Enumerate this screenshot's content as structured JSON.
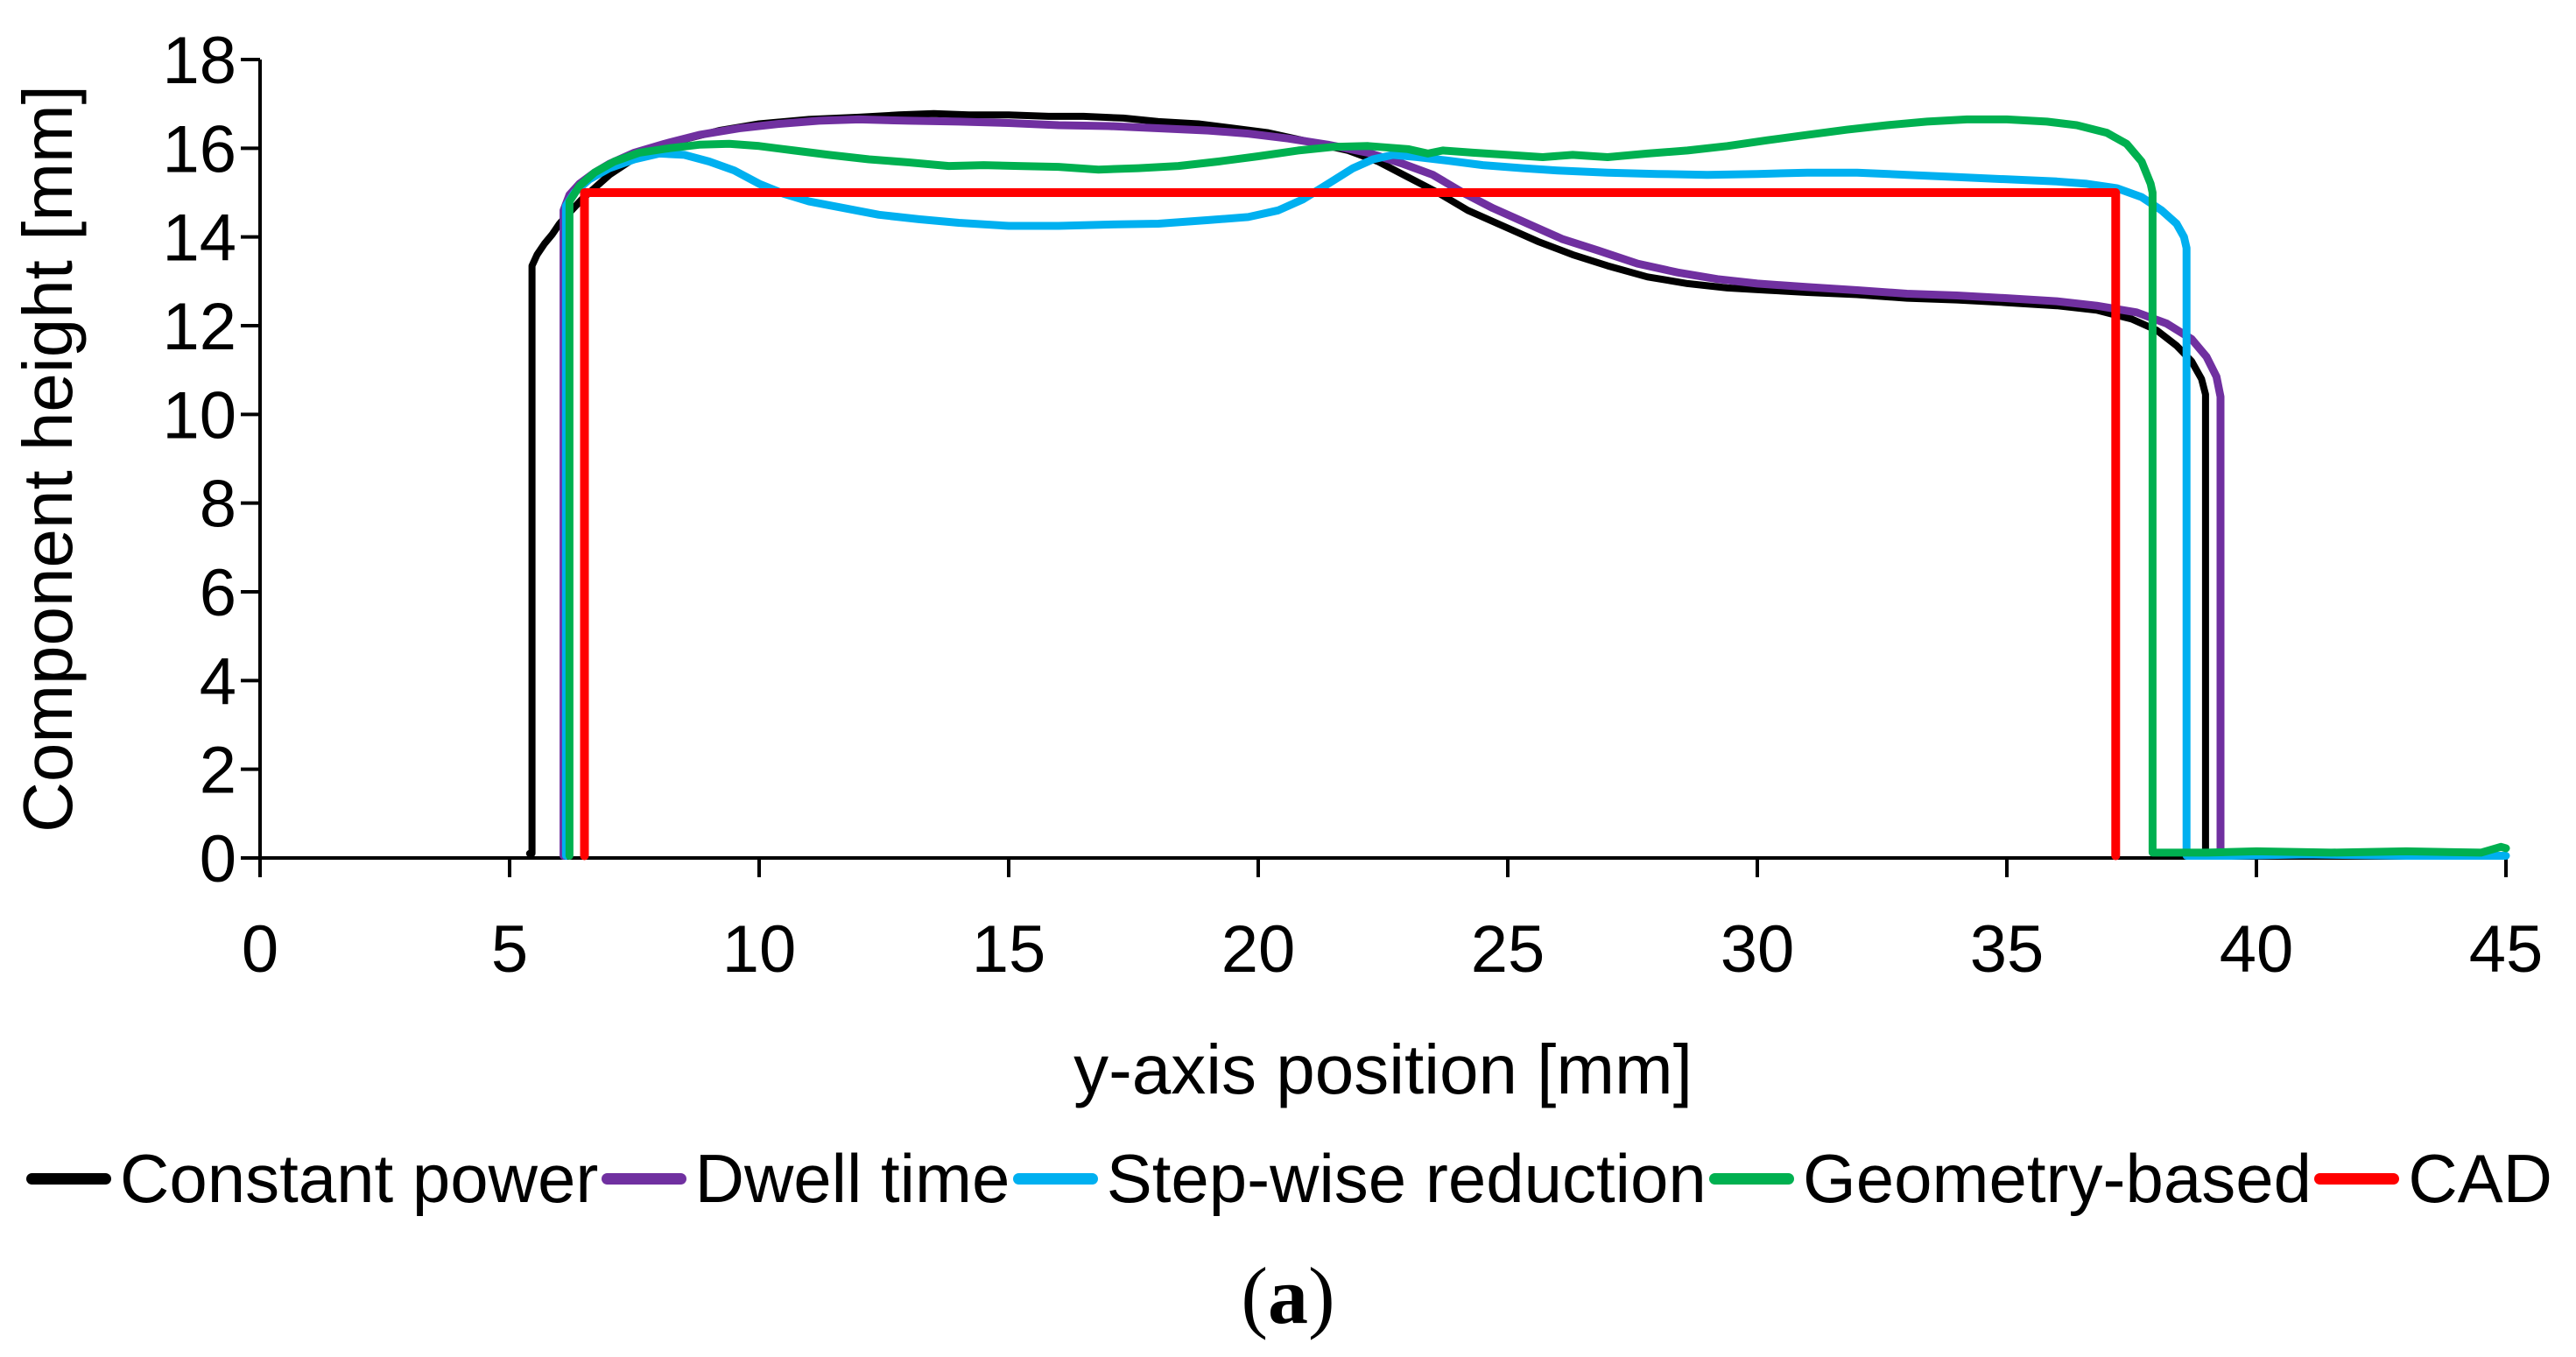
{
  "figure": {
    "caption": {
      "open": "(",
      "label": "a",
      "close": ")"
    }
  },
  "chart_data": {
    "type": "line",
    "title": "",
    "xlabel": "y-axis position [mm]",
    "ylabel": "Component height [mm]",
    "xlim": [
      0,
      45
    ],
    "ylim": [
      0,
      18
    ],
    "xticks": [
      0,
      5,
      10,
      15,
      20,
      25,
      30,
      35,
      40,
      45
    ],
    "yticks": [
      0,
      2,
      4,
      6,
      8,
      10,
      12,
      14,
      16,
      18
    ],
    "grid": false,
    "legend_position": "bottom",
    "axis_color": "#000000",
    "series": [
      {
        "name": "Constant power",
        "color": "#000000",
        "width": 8,
        "points": [
          [
            5.4,
            0.1
          ],
          [
            5.45,
            0.1
          ],
          [
            5.45,
            13.35
          ],
          [
            5.55,
            13.6
          ],
          [
            5.7,
            13.85
          ],
          [
            5.85,
            14.05
          ],
          [
            6.0,
            14.3
          ],
          [
            6.2,
            14.55
          ],
          [
            6.45,
            14.85
          ],
          [
            6.7,
            15.1
          ],
          [
            7.0,
            15.4
          ],
          [
            7.4,
            15.7
          ],
          [
            7.9,
            16.0
          ],
          [
            8.5,
            16.2
          ],
          [
            9.2,
            16.4
          ],
          [
            10,
            16.55
          ],
          [
            11,
            16.65
          ],
          [
            12,
            16.7
          ],
          [
            12.8,
            16.75
          ],
          [
            13.5,
            16.78
          ],
          [
            14.2,
            16.75
          ],
          [
            15,
            16.75
          ],
          [
            15.8,
            16.72
          ],
          [
            16.5,
            16.72
          ],
          [
            17.3,
            16.68
          ],
          [
            18,
            16.6
          ],
          [
            18.8,
            16.55
          ],
          [
            19.5,
            16.45
          ],
          [
            20.2,
            16.35
          ],
          [
            21,
            16.15
          ],
          [
            21.8,
            15.95
          ],
          [
            22.4,
            15.7
          ],
          [
            23,
            15.35
          ],
          [
            23.6,
            15.0
          ],
          [
            24.2,
            14.6
          ],
          [
            24.9,
            14.25
          ],
          [
            25.6,
            13.9
          ],
          [
            26.3,
            13.6
          ],
          [
            27,
            13.35
          ],
          [
            27.8,
            13.1
          ],
          [
            28.6,
            12.95
          ],
          [
            29.4,
            12.85
          ],
          [
            30.2,
            12.8
          ],
          [
            31,
            12.75
          ],
          [
            32,
            12.7
          ],
          [
            33,
            12.62
          ],
          [
            34,
            12.58
          ],
          [
            35,
            12.52
          ],
          [
            36,
            12.45
          ],
          [
            36.8,
            12.35
          ],
          [
            37.5,
            12.15
          ],
          [
            38,
            11.9
          ],
          [
            38.4,
            11.55
          ],
          [
            38.7,
            11.2
          ],
          [
            38.9,
            10.8
          ],
          [
            38.98,
            10.45
          ],
          [
            38.98,
            0.05
          ]
        ]
      },
      {
        "name": "Dwell time",
        "color": "#7030A0",
        "width": 9,
        "points": [
          [
            6.08,
            0.05
          ],
          [
            6.08,
            14.6
          ],
          [
            6.2,
            14.95
          ],
          [
            6.4,
            15.2
          ],
          [
            6.7,
            15.45
          ],
          [
            7.0,
            15.65
          ],
          [
            7.5,
            15.9
          ],
          [
            8.1,
            16.1
          ],
          [
            8.8,
            16.3
          ],
          [
            9.6,
            16.45
          ],
          [
            10.4,
            16.55
          ],
          [
            11.2,
            16.62
          ],
          [
            12,
            16.65
          ],
          [
            13,
            16.62
          ],
          [
            14,
            16.6
          ],
          [
            15,
            16.57
          ],
          [
            16,
            16.52
          ],
          [
            17,
            16.5
          ],
          [
            18,
            16.45
          ],
          [
            19,
            16.4
          ],
          [
            19.8,
            16.33
          ],
          [
            20.6,
            16.22
          ],
          [
            21.4,
            16.08
          ],
          [
            22.2,
            15.9
          ],
          [
            22.9,
            15.65
          ],
          [
            23.5,
            15.4
          ],
          [
            24.1,
            15.0
          ],
          [
            24.7,
            14.65
          ],
          [
            25.4,
            14.3
          ],
          [
            26.1,
            13.95
          ],
          [
            26.8,
            13.7
          ],
          [
            27.6,
            13.4
          ],
          [
            28.4,
            13.2
          ],
          [
            29.2,
            13.05
          ],
          [
            30,
            12.95
          ],
          [
            31,
            12.87
          ],
          [
            32,
            12.8
          ],
          [
            33,
            12.72
          ],
          [
            34,
            12.68
          ],
          [
            35,
            12.62
          ],
          [
            36,
            12.55
          ],
          [
            36.8,
            12.45
          ],
          [
            37.6,
            12.3
          ],
          [
            38.2,
            12.05
          ],
          [
            38.7,
            11.7
          ],
          [
            39.0,
            11.3
          ],
          [
            39.2,
            10.85
          ],
          [
            39.28,
            10.4
          ],
          [
            39.28,
            0.05
          ]
        ]
      },
      {
        "name": "Step-wise reduction",
        "color": "#00B0F0",
        "width": 9,
        "points": [
          [
            6.13,
            0.05
          ],
          [
            6.13,
            14.7
          ],
          [
            6.3,
            15.0
          ],
          [
            6.6,
            15.3
          ],
          [
            7.0,
            15.55
          ],
          [
            7.5,
            15.75
          ],
          [
            8.0,
            15.88
          ],
          [
            8.5,
            15.85
          ],
          [
            9.0,
            15.7
          ],
          [
            9.5,
            15.5
          ],
          [
            10.0,
            15.2
          ],
          [
            10.5,
            14.97
          ],
          [
            11,
            14.8
          ],
          [
            11.7,
            14.65
          ],
          [
            12.4,
            14.5
          ],
          [
            13.2,
            14.4
          ],
          [
            14,
            14.32
          ],
          [
            15,
            14.25
          ],
          [
            16,
            14.25
          ],
          [
            17,
            14.28
          ],
          [
            18,
            14.3
          ],
          [
            19,
            14.38
          ],
          [
            19.8,
            14.45
          ],
          [
            20.4,
            14.6
          ],
          [
            20.9,
            14.85
          ],
          [
            21.4,
            15.2
          ],
          [
            21.9,
            15.55
          ],
          [
            22.3,
            15.75
          ],
          [
            22.7,
            15.85
          ],
          [
            23.2,
            15.8
          ],
          [
            23.8,
            15.72
          ],
          [
            24.5,
            15.62
          ],
          [
            25.3,
            15.55
          ],
          [
            26,
            15.5
          ],
          [
            27,
            15.45
          ],
          [
            28,
            15.42
          ],
          [
            29,
            15.4
          ],
          [
            30,
            15.42
          ],
          [
            31,
            15.45
          ],
          [
            32,
            15.45
          ],
          [
            33,
            15.4
          ],
          [
            34,
            15.35
          ],
          [
            35,
            15.3
          ],
          [
            36,
            15.25
          ],
          [
            36.6,
            15.2
          ],
          [
            37.2,
            15.1
          ],
          [
            37.7,
            14.9
          ],
          [
            38.1,
            14.6
          ],
          [
            38.4,
            14.3
          ],
          [
            38.55,
            14.0
          ],
          [
            38.6,
            13.75
          ],
          [
            38.6,
            0.05
          ],
          [
            39.5,
            0.05
          ],
          [
            41,
            0.08
          ],
          [
            43,
            0.05
          ],
          [
            45,
            0.05
          ]
        ]
      },
      {
        "name": "Geometry-based",
        "color": "#00B050",
        "width": 9,
        "points": [
          [
            6.2,
            0.05
          ],
          [
            6.2,
            14.8
          ],
          [
            6.4,
            15.15
          ],
          [
            6.7,
            15.45
          ],
          [
            7.1,
            15.7
          ],
          [
            7.6,
            15.9
          ],
          [
            8.2,
            16.0
          ],
          [
            8.8,
            16.08
          ],
          [
            9.4,
            16.1
          ],
          [
            10,
            16.05
          ],
          [
            10.7,
            15.95
          ],
          [
            11.4,
            15.85
          ],
          [
            12.2,
            15.75
          ],
          [
            13,
            15.68
          ],
          [
            13.8,
            15.6
          ],
          [
            14.5,
            15.62
          ],
          [
            15.2,
            15.6
          ],
          [
            16,
            15.58
          ],
          [
            16.8,
            15.52
          ],
          [
            17.6,
            15.55
          ],
          [
            18.4,
            15.6
          ],
          [
            19.2,
            15.7
          ],
          [
            20,
            15.82
          ],
          [
            20.8,
            15.95
          ],
          [
            21.5,
            16.03
          ],
          [
            22.2,
            16.05
          ],
          [
            23,
            15.98
          ],
          [
            23.4,
            15.88
          ],
          [
            23.7,
            15.95
          ],
          [
            24.3,
            15.9
          ],
          [
            25,
            15.85
          ],
          [
            25.7,
            15.8
          ],
          [
            26.3,
            15.85
          ],
          [
            27,
            15.8
          ],
          [
            27.8,
            15.88
          ],
          [
            28.6,
            15.95
          ],
          [
            29.4,
            16.05
          ],
          [
            30.2,
            16.18
          ],
          [
            31,
            16.3
          ],
          [
            31.8,
            16.42
          ],
          [
            32.6,
            16.52
          ],
          [
            33.4,
            16.6
          ],
          [
            34.2,
            16.65
          ],
          [
            35,
            16.65
          ],
          [
            35.8,
            16.6
          ],
          [
            36.4,
            16.52
          ],
          [
            37,
            16.35
          ],
          [
            37.4,
            16.1
          ],
          [
            37.7,
            15.7
          ],
          [
            37.88,
            15.2
          ],
          [
            37.92,
            15.0
          ],
          [
            37.92,
            0.12
          ],
          [
            39,
            0.12
          ],
          [
            40,
            0.15
          ],
          [
            41.5,
            0.12
          ],
          [
            43,
            0.15
          ],
          [
            44.5,
            0.12
          ],
          [
            44.9,
            0.25
          ],
          [
            45,
            0.22
          ]
        ]
      },
      {
        "name": "CAD",
        "color": "#FF0000",
        "width": 10,
        "points": [
          [
            6.5,
            0.05
          ],
          [
            6.5,
            15.0
          ],
          [
            37.18,
            15.0
          ],
          [
            37.18,
            0.05
          ]
        ]
      }
    ]
  }
}
